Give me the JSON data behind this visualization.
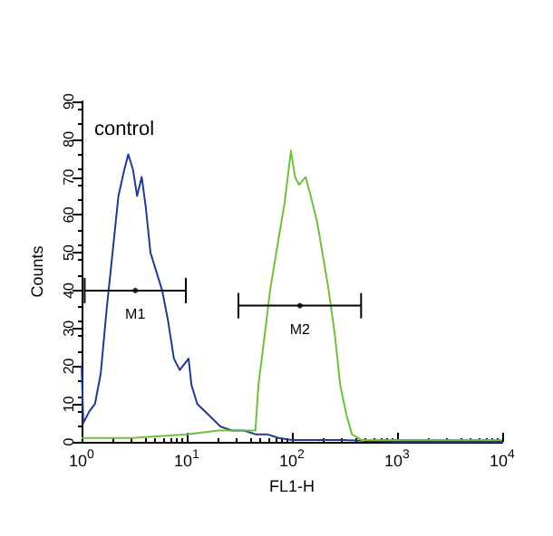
{
  "chart_data": {
    "type": "line",
    "xlabel": "FL1-H",
    "ylabel": "Counts",
    "log": "x",
    "grid": false,
    "xlim": [
      1,
      10000
    ],
    "xticks": [
      {
        "value": 1,
        "label": "10$^{0}$"
      },
      {
        "value": 10,
        "label": "10$^{1}$"
      },
      {
        "value": 100,
        "label": "10$^{2}$"
      },
      {
        "value": 1000,
        "label": "10$^{3}$"
      },
      {
        "value": 10000,
        "label": "10$^{4}$"
      }
    ],
    "ylim": [
      0,
      90
    ],
    "yticks": [
      0,
      10,
      20,
      30,
      40,
      50,
      60,
      70,
      80,
      90
    ],
    "annotations": [
      "control"
    ],
    "series": [
      {
        "color": "#1f3c8c",
        "marker": "none",
        "x": [
          1,
          1.04,
          1.18,
          1.34,
          1.52,
          1.73,
          1.97,
          2.24,
          2.55,
          2.78,
          3.08,
          3.37,
          3.73,
          4.08,
          4.52,
          5.14,
          5.84,
          6.64,
          7.55,
          8.58,
          10.4,
          11.1,
          12.6,
          16.3,
          21,
          27,
          35,
          45,
          58,
          75,
          100,
          300,
          1000,
          10000
        ],
        "values": [
          20,
          5,
          8,
          10,
          18,
          35,
          50,
          65,
          72,
          76,
          72,
          65,
          70,
          62,
          50,
          45,
          40,
          32,
          22,
          19,
          22,
          15,
          10,
          7,
          4,
          3,
          3,
          2,
          2,
          1,
          0.5,
          0.5,
          0,
          0
        ]
      },
      {
        "color": "#6fbf3a",
        "marker": "none",
        "x": [
          1,
          3,
          10,
          20,
          35,
          45,
          48,
          55,
          62,
          76,
          85,
          98,
          107,
          117,
          135,
          151,
          174,
          195,
          224,
          257,
          288,
          331,
          372,
          457,
          1000,
          10000
        ],
        "values": [
          1,
          1,
          2,
          3,
          3,
          3,
          15,
          28,
          40,
          55,
          63,
          77,
          70,
          68,
          70,
          65,
          58,
          50,
          40,
          28,
          15,
          7,
          2,
          0.5,
          0.5,
          0.5
        ]
      },
      {
        "type": "scatter",
        "color": "#000000",
        "x": [
          3.24
        ],
        "values": [
          40
        ],
        "xerrors": [
          [
            1.07,
            9.8
          ]
        ],
        "value_labels": [
          "M1"
        ]
      },
      {
        "type": "scatter",
        "color": "#000000",
        "x": [
          119
        ],
        "values": [
          36
        ],
        "xerrors": [
          [
            31,
            455
          ]
        ],
        "value_labels": [
          "M2"
        ]
      }
    ]
  }
}
